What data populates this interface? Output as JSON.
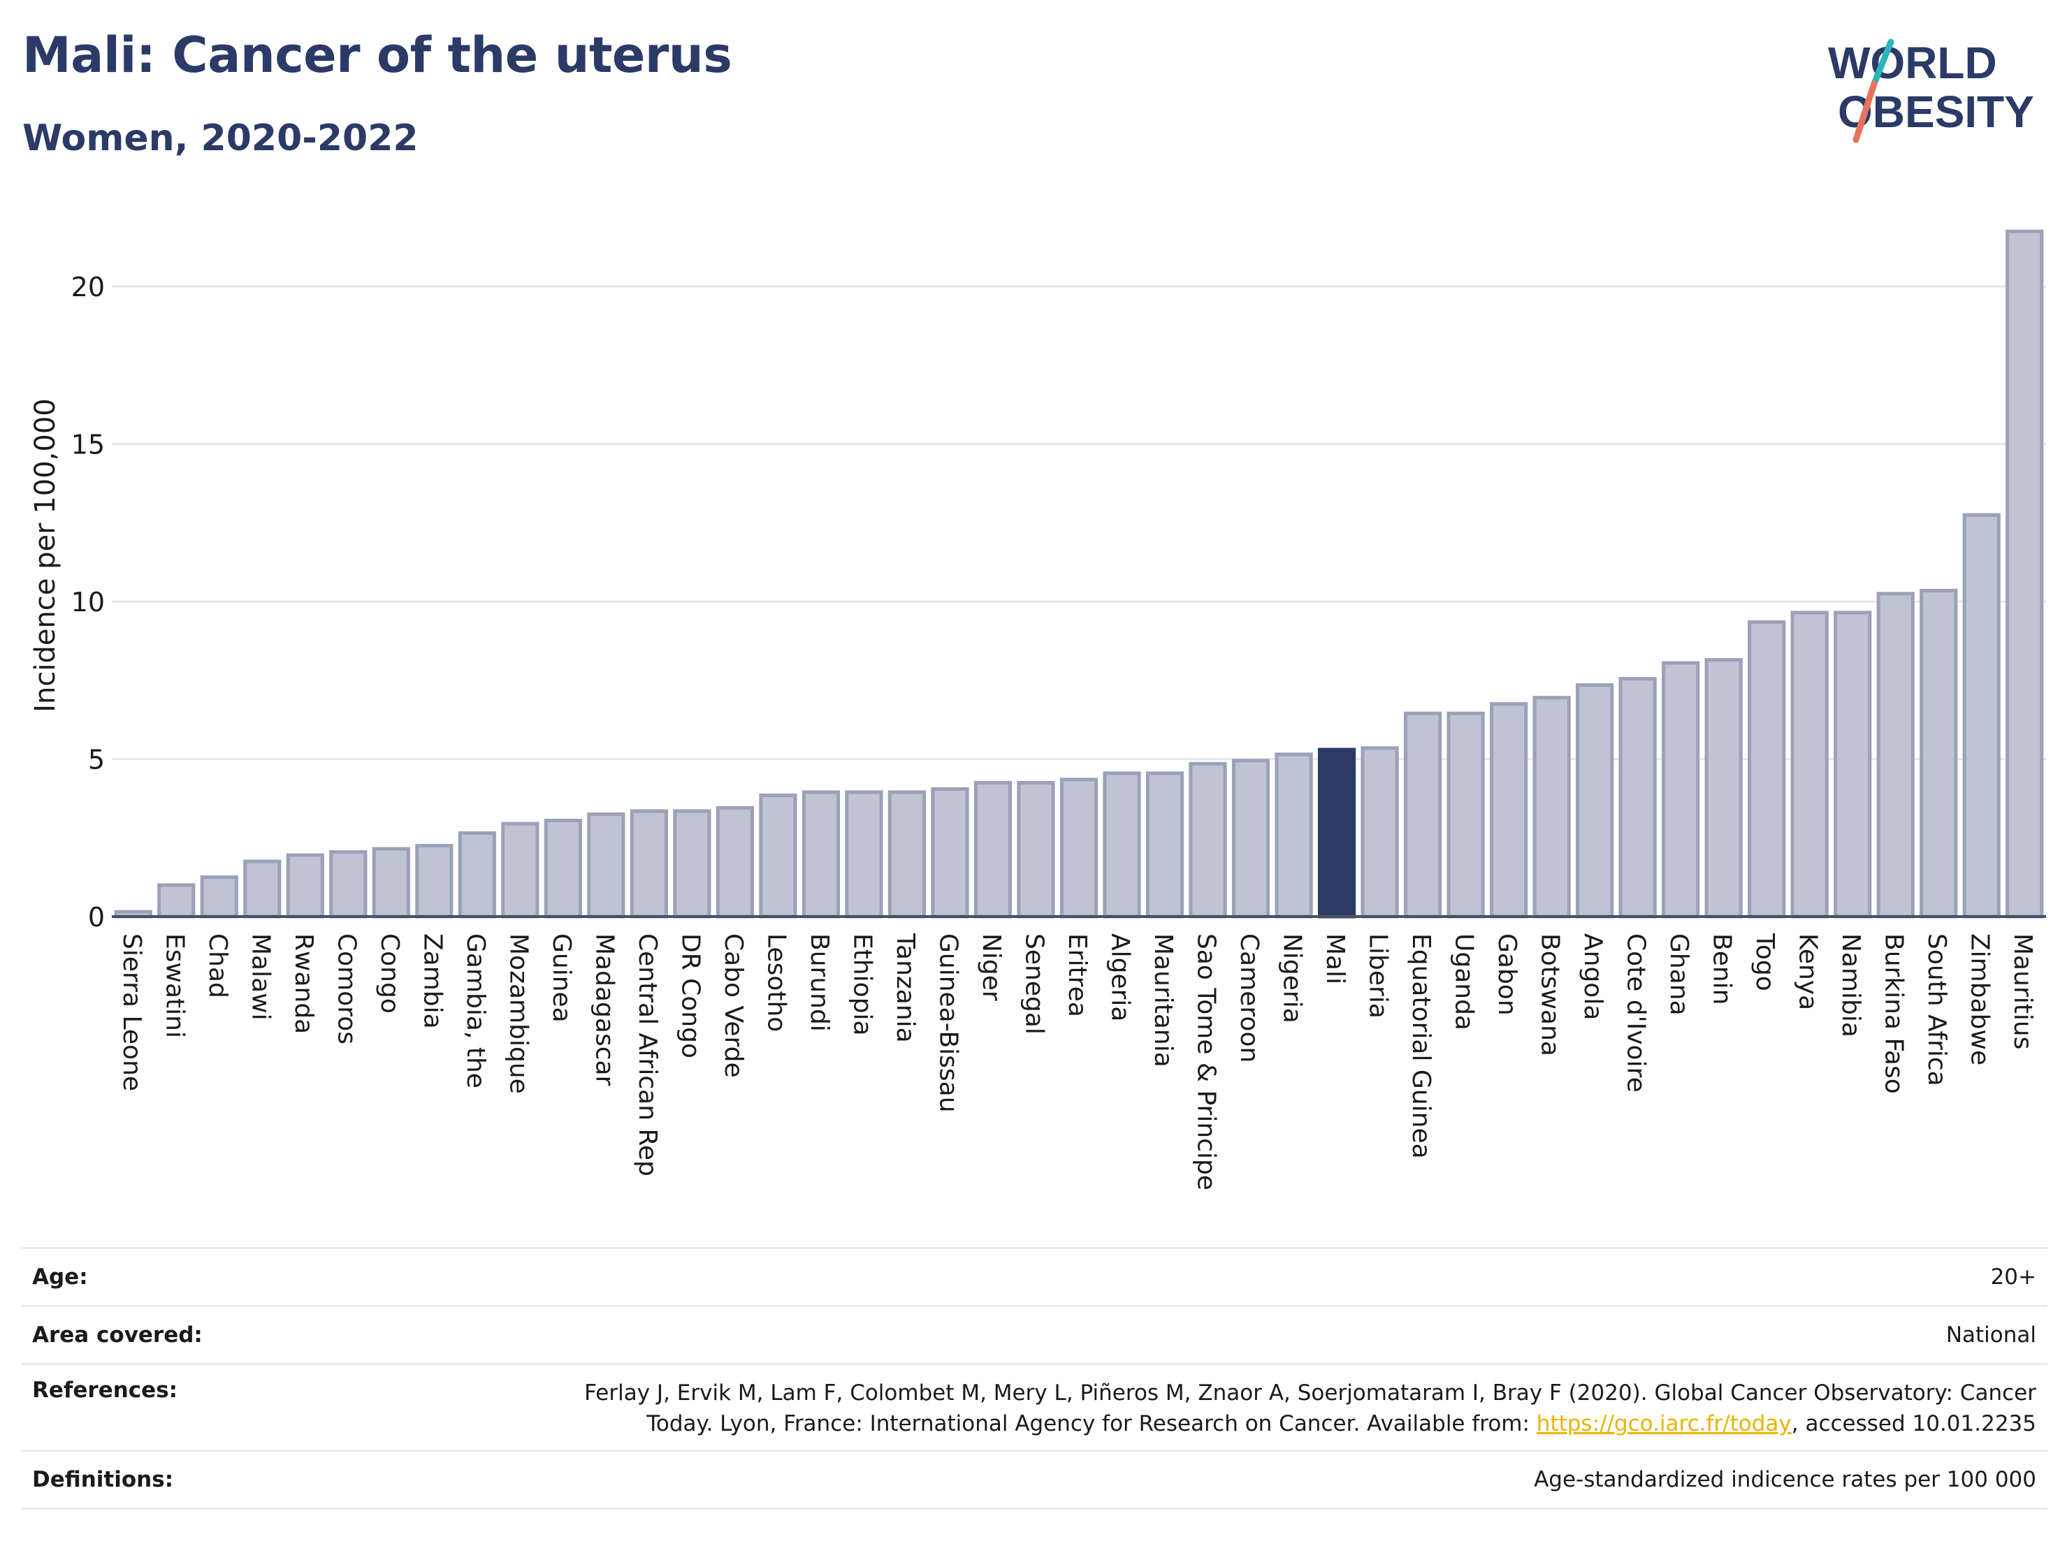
{
  "title": "Mali: Cancer of the uterus",
  "subtitle": "Women, 2020-2022",
  "logo": {
    "line1": "WORLD",
    "line2": "OBESITY",
    "colors": {
      "text": "#2b3a67",
      "slash_teal": "#2bb5b8",
      "slash_coral": "#e8735a"
    }
  },
  "colors": {
    "bar": "#bfc4d3",
    "bar_stroke": "#9aa1b8",
    "highlight": "#2b3a67",
    "grid": "#e6e8ec",
    "axis": "#4a4f63",
    "link": "#e8b400"
  },
  "chart_data": {
    "type": "bar",
    "ylabel": "Incidence per 100,000",
    "ylim": [
      0,
      22
    ],
    "yticks": [
      0,
      5,
      10,
      15,
      20
    ],
    "grid": true,
    "highlight": "Mali",
    "categories": [
      "Sierra Leone",
      "Eswatini",
      "Chad",
      "Malawi",
      "Rwanda",
      "Comoros",
      "Congo",
      "Zambia",
      "Gambia, the",
      "Mozambique",
      "Guinea",
      "Madagascar",
      "Central African Rep",
      "DR Congo",
      "Cabo Verde",
      "Lesotho",
      "Burundi",
      "Ethiopia",
      "Tanzania",
      "Guinea-Bissau",
      "Niger",
      "Senegal",
      "Eritrea",
      "Algeria",
      "Mauritania",
      "Sao Tome & Principe",
      "Cameroon",
      "Nigeria",
      "Mali",
      "Liberia",
      "Equatorial Guinea",
      "Uganda",
      "Gabon",
      "Botswana",
      "Angola",
      "Cote d'Ivoire",
      "Ghana",
      "Benin",
      "Togo",
      "Kenya",
      "Namibia",
      "Burkina Faso",
      "South Africa",
      "Zimbabwe",
      "Mauritius"
    ],
    "values": [
      0.15,
      1.0,
      1.25,
      1.75,
      1.95,
      2.05,
      2.15,
      2.25,
      2.65,
      2.95,
      3.05,
      3.25,
      3.35,
      3.35,
      3.45,
      3.85,
      3.95,
      3.95,
      3.95,
      4.05,
      4.25,
      4.25,
      4.35,
      4.55,
      4.55,
      4.85,
      4.95,
      5.15,
      5.3,
      5.35,
      6.45,
      6.45,
      6.75,
      6.95,
      7.35,
      7.55,
      8.05,
      8.15,
      9.35,
      9.65,
      9.65,
      10.25,
      10.35,
      12.75,
      21.75
    ]
  },
  "meta": {
    "age_label": "Age:",
    "age_value": "20+",
    "area_label": "Area covered:",
    "area_value": "National",
    "references_label": "References:",
    "references_line1": "Ferlay J, Ervik M, Lam F, Colombet M, Mery L, Piñeros M, Znaor A, Soerjomataram I, Bray F (2020). Global Cancer Observatory: Cancer",
    "references_line2_pre": "Today. Lyon, France: International Agency for Research on Cancer. Available from: ",
    "references_link": "https://gco.iarc.fr/today",
    "references_line2_post": ", accessed 10.01.2235",
    "definitions_label": "Definitions:",
    "definitions_value": "Age-standardized indicence rates per 100 000"
  }
}
